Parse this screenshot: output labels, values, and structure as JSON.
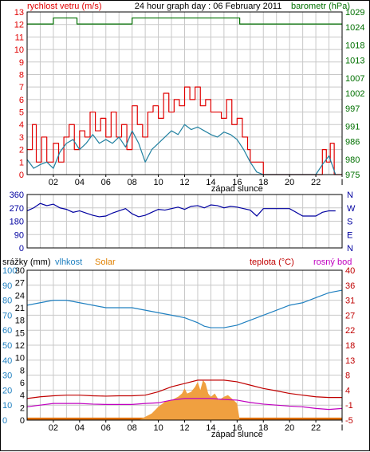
{
  "chart_data": [
    {
      "type": "line",
      "title": "24 hour graph day : 06 February 2011",
      "left_axis": {
        "label": "rychlost vetru (m/s)",
        "ticks": [
          0,
          1,
          2,
          3,
          4,
          5,
          6,
          7,
          8,
          9,
          10,
          11,
          12,
          13
        ],
        "range": [
          0,
          13
        ]
      },
      "right_axis": {
        "label": "barometr (hPa)",
        "ticks": [
          975,
          980,
          986,
          991,
          997,
          1002,
          1007,
          1013,
          1018,
          1024,
          1029
        ],
        "range": [
          975,
          1029
        ]
      },
      "x_ticks": [
        "02",
        "04",
        "06",
        "08",
        "10",
        "12",
        "14",
        "16",
        "18",
        "20",
        "22",
        "I"
      ],
      "x_range": [
        0,
        24
      ],
      "sunset_label": "západ slunce",
      "series": [
        {
          "name": "gust",
          "color": "#e00000",
          "step": true,
          "x": [
            0,
            0.4,
            0.7,
            1.1,
            1.5,
            2.0,
            2.4,
            2.8,
            3.2,
            3.6,
            4.0,
            4.4,
            4.8,
            5.2,
            5.6,
            6.0,
            6.4,
            6.8,
            7.2,
            7.6,
            8.0,
            8.4,
            8.8,
            9.2,
            9.6,
            10.0,
            10.4,
            10.8,
            11.2,
            11.6,
            12.0,
            12.4,
            12.8,
            13.2,
            13.6,
            14.0,
            14.4,
            14.8,
            15.2,
            15.6,
            16.0,
            16.4,
            16.8,
            17.0,
            18.0,
            19.0,
            20.0,
            21.0,
            22.0,
            22.5,
            22.8,
            23.1,
            23.4
          ],
          "y": [
            2.0,
            4.0,
            1.0,
            3.0,
            1.0,
            2.5,
            1.0,
            3.0,
            4.0,
            2.0,
            3.5,
            3.0,
            5.0,
            3.5,
            4.5,
            3.0,
            5.0,
            3.0,
            4.0,
            2.0,
            5.5,
            4.0,
            3.0,
            5.0,
            5.5,
            4.5,
            6.5,
            5.0,
            6.0,
            5.5,
            7.0,
            6.0,
            7.0,
            5.5,
            6.0,
            5.0,
            5.0,
            4.5,
            6.0,
            4.0,
            4.5,
            3.0,
            2.0,
            1.0,
            0.0,
            0.0,
            0.0,
            0.0,
            0.0,
            2.0,
            1.0,
            2.5,
            0.0
          ]
        },
        {
          "name": "wind",
          "color": "#2080a0",
          "x": [
            0,
            0.5,
            1.0,
            1.5,
            2.0,
            2.5,
            3.0,
            3.5,
            4.0,
            4.5,
            5.0,
            5.5,
            6.0,
            6.5,
            7.0,
            7.5,
            8.0,
            8.5,
            9.0,
            9.5,
            10.0,
            10.5,
            11.0,
            11.5,
            12.0,
            12.5,
            13.0,
            13.5,
            14.0,
            14.5,
            15.0,
            15.5,
            16.0,
            16.5,
            17.0,
            17.5,
            18.0,
            19.0,
            20.0,
            21.0,
            22.0,
            22.5,
            23.0,
            23.5
          ],
          "y": [
            1.2,
            0.5,
            0.8,
            1.0,
            0.5,
            1.8,
            2.5,
            2.8,
            2.0,
            2.5,
            3.2,
            2.5,
            2.8,
            2.5,
            3.0,
            2.2,
            3.5,
            2.5,
            1.0,
            2.0,
            2.5,
            3.0,
            3.5,
            3.2,
            4.0,
            3.6,
            3.8,
            3.5,
            3.2,
            3.0,
            3.4,
            3.2,
            2.8,
            2.0,
            1.0,
            0.2,
            0.0,
            0.0,
            0.0,
            0.0,
            0.0,
            0.8,
            1.5,
            0.0
          ]
        },
        {
          "name": "barometr",
          "color": "#007000",
          "axis": "right",
          "step": true,
          "x": [
            0,
            2.0,
            3.8,
            8.0,
            16.2,
            24.0
          ],
          "y": [
            1025,
            1027,
            1025,
            1027,
            1025,
            1025
          ]
        }
      ]
    },
    {
      "type": "line",
      "left_axis": {
        "ticks": [
          0,
          90,
          180,
          270,
          360
        ],
        "range": [
          0,
          360
        ]
      },
      "right_axis_labels": [
        "N",
        "W",
        "S",
        "E",
        "N"
      ],
      "x_range": [
        0,
        24
      ],
      "series": [
        {
          "name": "direction",
          "color": "#0000a0",
          "x": [
            0,
            0.5,
            1.0,
            1.5,
            2.0,
            2.5,
            3.0,
            3.5,
            4.0,
            4.5,
            5.0,
            5.5,
            6.0,
            6.5,
            7.0,
            7.5,
            8.0,
            8.5,
            9.0,
            9.5,
            10.0,
            10.5,
            11.0,
            11.5,
            12.0,
            12.5,
            13.0,
            13.5,
            14.0,
            14.5,
            15.0,
            15.5,
            16.0,
            16.5,
            17.0,
            17.5,
            18.0,
            20.0,
            21.0,
            22.0,
            22.5,
            23.0,
            23.5
          ],
          "y": [
            250,
            270,
            300,
            285,
            295,
            270,
            260,
            240,
            250,
            235,
            220,
            210,
            215,
            235,
            250,
            265,
            230,
            210,
            220,
            240,
            260,
            255,
            265,
            275,
            260,
            280,
            285,
            270,
            290,
            285,
            270,
            280,
            275,
            265,
            255,
            215,
            265,
            265,
            215,
            215,
            240,
            250,
            250
          ]
        }
      ]
    },
    {
      "type": "line",
      "header_labels": [
        {
          "text": "srážky (mm)",
          "color": "#000000"
        },
        {
          "text": "vlhkost",
          "color": "#2080c0"
        },
        {
          "text": "Solar",
          "color": "#e08000"
        },
        {
          "text": "teplota (°C)",
          "color": "#c00000"
        },
        {
          "text": "rosný bod",
          "color": "#c000c0"
        }
      ],
      "left_axis_rain": {
        "ticks": [
          0,
          2,
          4,
          6,
          8,
          10,
          12,
          15,
          18,
          21,
          24,
          27,
          30
        ],
        "range": [
          0,
          30
        ]
      },
      "left_axis_humidity": {
        "ticks": [
          0,
          10,
          20,
          30,
          40,
          50,
          60,
          70,
          80,
          90,
          100
        ],
        "range": [
          0,
          100
        ]
      },
      "right_axis": {
        "ticks": [
          -5,
          -1,
          4,
          8,
          13,
          18,
          22,
          27,
          31,
          36,
          40
        ],
        "range": [
          -5,
          40
        ]
      },
      "x_ticks": [
        "02",
        "04",
        "06",
        "08",
        "10",
        "12",
        "14",
        "16",
        "18",
        "20",
        "22",
        "I"
      ],
      "x_range": [
        0,
        24
      ],
      "sunset_label": "západ slunce",
      "series": [
        {
          "name": "vlhkost",
          "color": "#2080c0",
          "axis": "left",
          "range": [
            0,
            30
          ],
          "x": [
            0,
            1,
            2,
            3,
            4,
            5,
            6,
            7,
            8,
            9,
            10,
            11,
            12,
            13,
            13.5,
            14,
            15,
            16,
            17,
            18,
            19,
            20,
            21,
            22,
            23,
            24
          ],
          "y": [
            23.0,
            23.5,
            24.0,
            24.0,
            23.5,
            23.0,
            22.5,
            22.5,
            22.5,
            22.0,
            21.5,
            21.0,
            20.5,
            19.5,
            18.8,
            18.5,
            18.5,
            19.0,
            20.0,
            21.0,
            22.0,
            23.0,
            23.5,
            24.5,
            25.5,
            26.0
          ]
        },
        {
          "name": "teplota",
          "color": "#c00000",
          "axis": "right",
          "range": [
            -5,
            40
          ],
          "x": [
            0,
            1,
            2,
            3,
            4,
            5,
            6,
            7,
            8,
            9,
            10,
            11,
            12,
            13,
            14,
            15,
            16,
            17,
            18,
            19,
            20,
            21,
            22,
            23,
            24
          ],
          "y": [
            1.5,
            2.0,
            2.3,
            2.5,
            2.5,
            2.3,
            2.2,
            2.3,
            2.3,
            2.5,
            3.5,
            5.0,
            6.0,
            7.0,
            7.0,
            7.0,
            6.5,
            5.5,
            4.5,
            3.8,
            3.0,
            2.5,
            2.0,
            1.8,
            1.8
          ]
        },
        {
          "name": "rosny_bod",
          "color": "#c000c0",
          "axis": "right",
          "range": [
            -5,
            40
          ],
          "x": [
            0,
            1,
            2,
            3,
            4,
            5,
            6,
            7,
            8,
            9,
            10,
            11,
            12,
            13,
            14,
            15,
            16,
            17,
            18,
            19,
            20,
            21,
            22,
            23,
            24
          ],
          "y": [
            -1.0,
            -0.5,
            0.0,
            0.0,
            0.0,
            -0.2,
            -0.3,
            -0.3,
            -0.3,
            0.0,
            0.2,
            1.0,
            1.5,
            1.5,
            1.5,
            1.2,
            1.0,
            0.3,
            -0.2,
            -0.5,
            -0.8,
            -1.0,
            -1.5,
            -1.8,
            -1.5
          ]
        },
        {
          "name": "srazky",
          "color": "#e07000",
          "type": "area",
          "x": [
            0,
            24
          ],
          "y": [
            0.5,
            0.5
          ]
        },
        {
          "name": "solar",
          "color": "#f0a040",
          "type": "area",
          "axis": "right",
          "range": [
            -5,
            40
          ],
          "x": [
            8.5,
            9.0,
            9.5,
            10.0,
            10.5,
            11.0,
            11.5,
            11.8,
            12.0,
            12.2,
            12.5,
            12.8,
            13.0,
            13.2,
            13.4,
            13.6,
            13.8,
            14.0,
            14.3,
            14.6,
            15.0,
            15.3,
            15.6,
            16.0,
            16.2
          ],
          "y": [
            -5.0,
            -4.0,
            -3.0,
            -1.0,
            0.5,
            1.0,
            2.0,
            3.0,
            4.5,
            3.0,
            3.5,
            5.0,
            6.5,
            4.0,
            7.0,
            6.0,
            3.0,
            2.0,
            3.0,
            1.0,
            2.0,
            2.5,
            1.5,
            0.0,
            -5.0
          ]
        }
      ]
    }
  ]
}
